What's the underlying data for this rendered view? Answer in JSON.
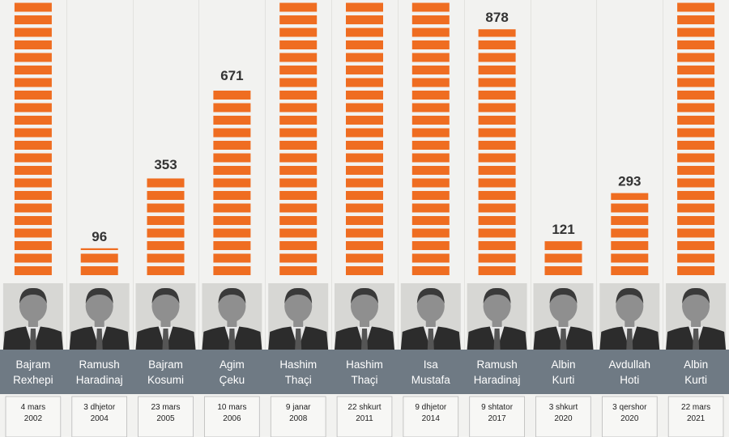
{
  "chart_data": {
    "type": "bar",
    "categories": [
      "Bajram Rexhepi",
      "Ramush Haradinaj",
      "Bajram Kosumi",
      "Agim Çeku",
      "Hashim Thaçi",
      "Hashim Thaçi",
      "Isa Mustafa",
      "Ramush Haradinaj",
      "Albin Kurti",
      "Avdullah Hoti",
      "Albin Kurti"
    ],
    "series": [
      {
        "values": [
          1000,
          96,
          353,
          671,
          1000,
          1000,
          1000,
          878,
          121,
          293,
          1000
        ],
        "labels": [
          "",
          "96",
          "353",
          "671",
          "",
          "",
          "",
          "878",
          "121",
          "293",
          ""
        ]
      }
    ],
    "leaders": [
      {
        "first": "Bajram",
        "last": "Rexhepi",
        "date_day": "4 mars",
        "date_year": "2002"
      },
      {
        "first": "Ramush",
        "last": "Haradinaj",
        "date_day": "3 dhjetor",
        "date_year": "2004"
      },
      {
        "first": "Bajram",
        "last": "Kosumi",
        "date_day": "23 mars",
        "date_year": "2005"
      },
      {
        "first": "Agim",
        "last": "Çeku",
        "date_day": "10 mars",
        "date_year": "2006"
      },
      {
        "first": "Hashim",
        "last": "Thaçi",
        "date_day": "9 janar",
        "date_year": "2008"
      },
      {
        "first": "Hashim",
        "last": "Thaçi",
        "date_day": "22 shkurt",
        "date_year": "2011"
      },
      {
        "first": "Isa",
        "last": "Mustafa",
        "date_day": "9 dhjetor",
        "date_year": "2014"
      },
      {
        "first": "Ramush",
        "last": "Haradinaj",
        "date_day": "9 shtator",
        "date_year": "2017"
      },
      {
        "first": "Albin",
        "last": "Kurti",
        "date_day": "3 shkurt",
        "date_year": "2020"
      },
      {
        "first": "Avdullah",
        "last": "Hoti",
        "date_day": "3 qershor",
        "date_year": "2020"
      },
      {
        "first": "Albin",
        "last": "Kurti",
        "date_day": "22 mars",
        "date_year": "2021"
      }
    ],
    "ylim": [
      0,
      1000
    ],
    "bar_color": "#ef6d21",
    "name_band_color": "#6f7a84",
    "grid": false
  }
}
